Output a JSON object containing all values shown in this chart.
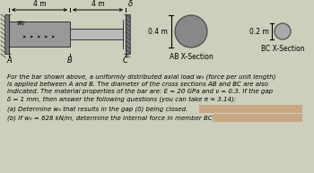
{
  "bg_color": "#cccfbb",
  "bar_label_4m_left": "4 m",
  "bar_label_4m_right": "4 m",
  "delta_label": "δ",
  "wo_label": "w₀",
  "A_label": "A",
  "B_label": "B",
  "C_label": "C",
  "ab_section_label": "AB X-Section",
  "bc_section_label": "BC X-Section",
  "ab_diameter_label": "0.4 m",
  "bc_diameter_label": "0.2 m",
  "text_lines": [
    "For the bar shown above, a uniformly distributed axial load w₀ (force per unit length)",
    "is applied between A and B. The diameter of the cross sections AB and BC are also",
    "indicated. The material properties of the bar are: E = 20 GPa and ν = 0.3. If the gap",
    "δ = 1 mm, then answer the following questions (you can take π ≈ 3.14):"
  ],
  "q1": "(a) Determine w₀ that results in the gap (δ) being closed.",
  "q2": "(b) If w₀ = 628 kN/m, determine the internal force in member BC?"
}
